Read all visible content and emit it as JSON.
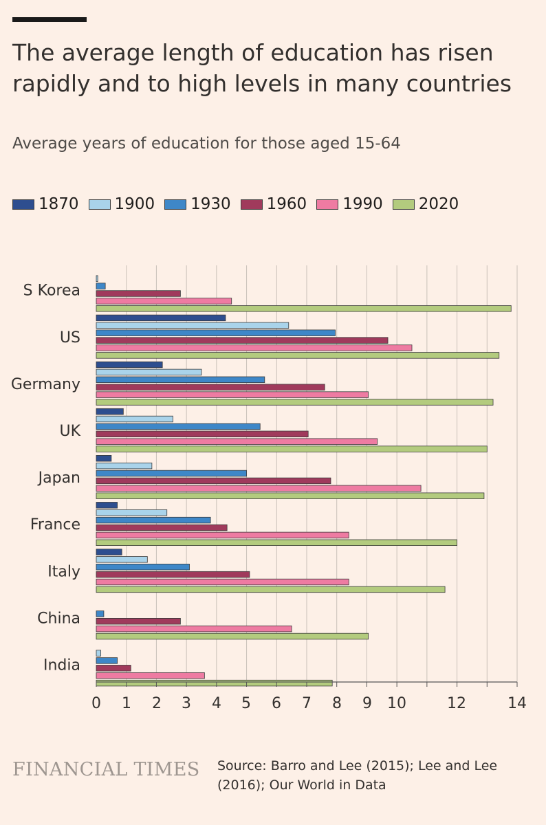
{
  "header": {
    "title": "The average length of education has risen rapidly and to high levels in many countries",
    "subtitle": "Average years of education for those aged 15-64"
  },
  "footer": {
    "brand": "FINANCIAL TIMES",
    "source": "Source: Barro and Lee (2015); Lee and Lee (2016); Our World in Data"
  },
  "chart_data": {
    "type": "bar",
    "orientation": "horizontal",
    "categories": [
      "S Korea",
      "US",
      "Germany",
      "UK",
      "Japan",
      "France",
      "Italy",
      "China",
      "India"
    ],
    "series": [
      {
        "name": "1870",
        "color": "#2e4e8f",
        "values": [
          0.0,
          4.3,
          2.2,
          0.9,
          0.5,
          0.7,
          0.85,
          0.0,
          0.0
        ]
      },
      {
        "name": "1900",
        "color": "#a9d3ea",
        "values": [
          0.05,
          6.4,
          3.5,
          2.55,
          1.85,
          2.35,
          1.7,
          0.0,
          0.15
        ]
      },
      {
        "name": "1930",
        "color": "#3e87c8",
        "values": [
          0.3,
          7.95,
          5.6,
          5.45,
          5.0,
          3.8,
          3.1,
          0.25,
          0.7
        ]
      },
      {
        "name": "1960",
        "color": "#a03a5c",
        "values": [
          2.8,
          9.7,
          7.6,
          7.05,
          7.8,
          4.35,
          5.1,
          2.8,
          1.15
        ]
      },
      {
        "name": "1990",
        "color": "#ee7ba2",
        "values": [
          4.5,
          10.5,
          9.05,
          9.35,
          10.8,
          8.4,
          8.4,
          6.5,
          3.6
        ]
      },
      {
        "name": "2020",
        "color": "#b3cb7e",
        "values": [
          13.8,
          13.4,
          13.2,
          13.0,
          12.9,
          12.0,
          11.6,
          9.05,
          7.85
        ]
      }
    ],
    "x_ticks": [
      "0",
      "1",
      "2",
      "3",
      "4",
      "5",
      "6",
      "7",
      "8",
      "9",
      "10",
      "12",
      "14"
    ],
    "xlim": [
      0,
      14
    ],
    "grid": true,
    "legend_position": "top"
  }
}
